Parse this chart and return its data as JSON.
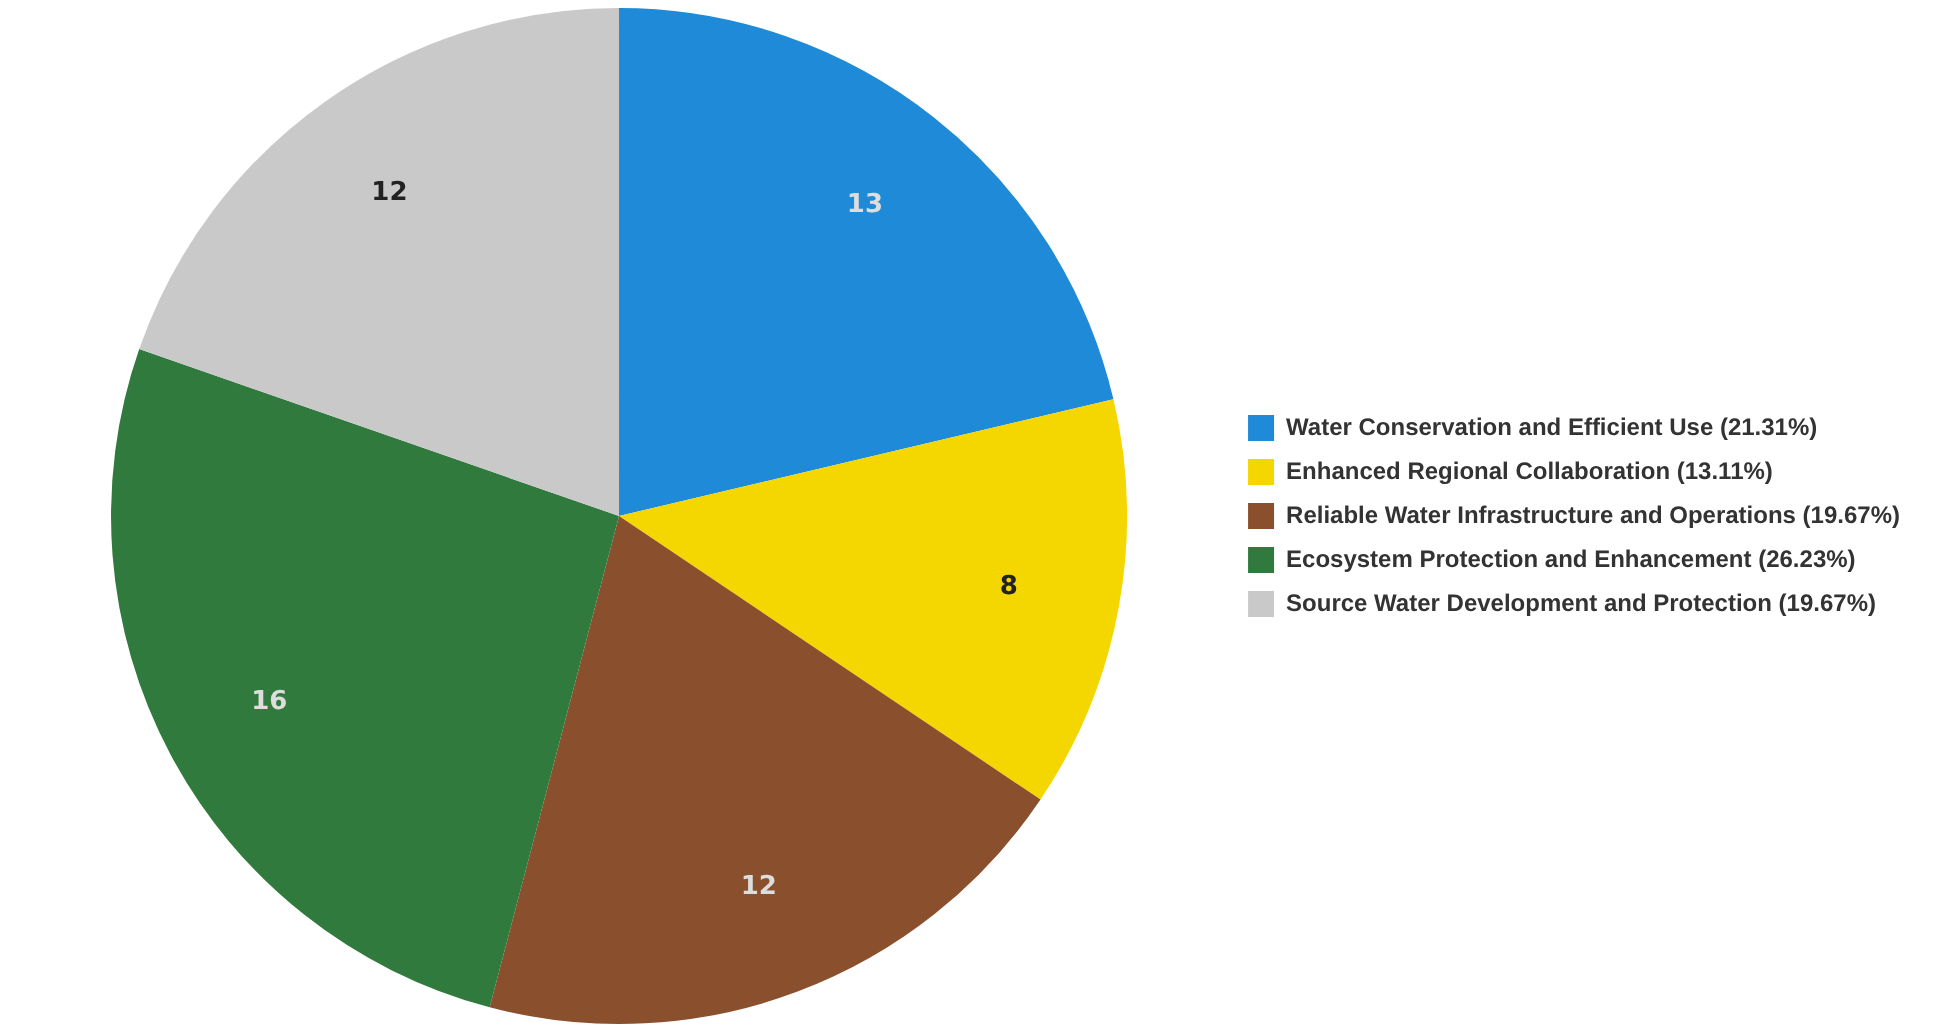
{
  "chart_data": {
    "type": "pie",
    "categories": [
      "Water Conservation and Efficient Use (21.31%)",
      "Enhanced Regional Collaboration (13.11%)",
      "Reliable Water Infrastructure and Operations (19.67%)",
      "Ecosystem Protection and Enhancement (26.23%)",
      "Source Water Development and Protection (19.67%)"
    ],
    "values": [
      13,
      8,
      12,
      16,
      12
    ],
    "colors": [
      "#1e8ad8",
      "#f4d600",
      "#8a4f2c",
      "#2f7a3c",
      "#c9c9c9"
    ],
    "data_labels": true,
    "legend": "right"
  }
}
